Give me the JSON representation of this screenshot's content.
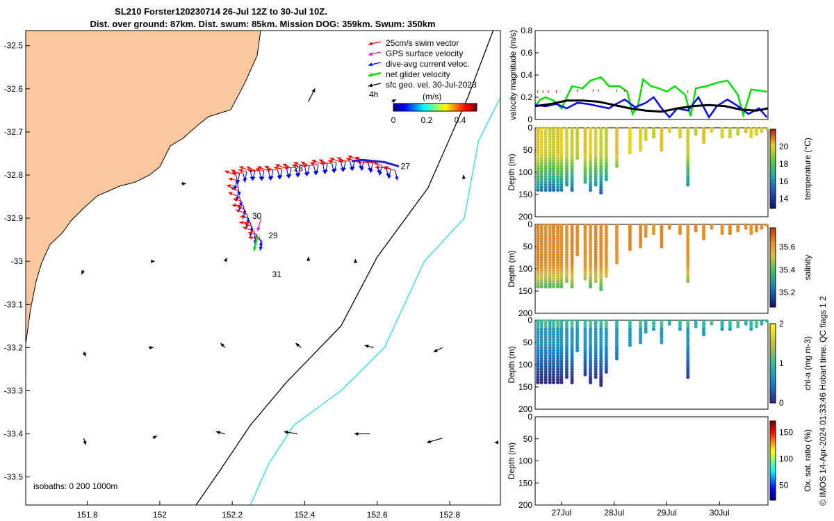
{
  "title": {
    "line1": "SL210 Forster120230714 26-Jul 12Z to 30-Jul 10Z.",
    "line2": "Dist. over ground: 87km. Dist. swum: 85km. Mission DOG: 359km. Swum: 350km"
  },
  "footer_credit": "© IMOS 14-Apr-2024 01:33:46 Hobart time. QC flags 1  2",
  "colors": {
    "land": "#f9c89e",
    "isobath_200": "#000000",
    "isobath_1000": "#3ee0e0",
    "swim_vector": "#ff0000",
    "gps_velocity": "#ff00ff",
    "dive_current": "#0000ff",
    "net_velocity": "#00e000",
    "geo_velocity": "#000000"
  },
  "chart_data": [
    {
      "type": "scatter",
      "name": "map",
      "x_ticks": [
        "151.8",
        "152",
        "152.2",
        "152.4",
        "152.6",
        "152.8"
      ],
      "x_tick_values": [
        151.8,
        152.0,
        152.2,
        152.4,
        152.6,
        152.8
      ],
      "y_ticks": [
        "-32.5",
        "-32.6",
        "-32.7",
        "-32.8",
        "-32.9",
        "-33",
        "-33.1",
        "-33.2",
        "-33.3",
        "-33.4",
        "-33.5"
      ],
      "y_tick_values": [
        -32.5,
        -32.6,
        -32.7,
        -32.8,
        -32.9,
        -33.0,
        -33.1,
        -33.2,
        -33.3,
        -33.4,
        -33.5
      ],
      "xlim": [
        151.63,
        152.94
      ],
      "ylim": [
        -33.565,
        -32.465
      ],
      "legend": [
        {
          "label": "25cm/s swim vector",
          "color": "#ff0000"
        },
        {
          "label": "GPS surface velocity",
          "color": "#ff00ff"
        },
        {
          "label": "dive-avg current veloc.",
          "color": "#0000ff"
        },
        {
          "label": "net glider velocity",
          "color": "#00e000"
        },
        {
          "label": "sfc geo. vel. 30-Jul-2023",
          "color": "#000000"
        }
      ],
      "scale_label": "4h",
      "colorbar": {
        "label": "(m/s)",
        "ticks": [
          "0",
          "0.2",
          "0.4"
        ],
        "tick_values": [
          0,
          0.2,
          0.4
        ],
        "range": [
          0,
          0.5
        ]
      },
      "day_labels": [
        {
          "text": "27",
          "lon": 152.665,
          "lat": -32.78
        },
        {
          "text": "28",
          "lon": 152.37,
          "lat": -32.785
        },
        {
          "text": "30",
          "lon": 152.255,
          "lat": -32.895
        },
        {
          "text": "29",
          "lon": 152.3,
          "lat": -32.94
        },
        {
          "text": "31",
          "lon": 152.31,
          "lat": -33.03
        }
      ],
      "isobath_note": "isobaths: 0   200  1000m",
      "track": [
        [
          152.65,
          -32.79
        ],
        [
          152.6,
          -32.775
        ],
        [
          152.55,
          -32.765
        ],
        [
          152.5,
          -32.77
        ],
        [
          152.45,
          -32.775
        ],
        [
          152.4,
          -32.78
        ],
        [
          152.35,
          -32.785
        ],
        [
          152.3,
          -32.79
        ],
        [
          152.25,
          -32.79
        ],
        [
          152.21,
          -32.8
        ],
        [
          152.22,
          -32.85
        ],
        [
          152.24,
          -32.89
        ],
        [
          152.26,
          -32.93
        ],
        [
          152.29,
          -32.96
        ]
      ],
      "isobath_200m": [
        [
          152.92,
          -32.465
        ],
        [
          152.85,
          -32.62
        ],
        [
          152.74,
          -32.83
        ],
        [
          152.6,
          -32.99
        ],
        [
          152.5,
          -33.15
        ],
        [
          152.35,
          -33.28
        ],
        [
          152.25,
          -33.38
        ],
        [
          152.17,
          -33.48
        ],
        [
          152.1,
          -33.565
        ]
      ],
      "isobath_1000m": [
        [
          152.94,
          -32.62
        ],
        [
          152.88,
          -32.72
        ],
        [
          152.84,
          -32.9
        ],
        [
          152.73,
          -33.0
        ],
        [
          152.62,
          -33.2
        ],
        [
          152.5,
          -33.3
        ],
        [
          152.37,
          -33.38
        ],
        [
          152.3,
          -33.47
        ],
        [
          152.25,
          -33.565
        ]
      ],
      "geo_vectors": [
        {
          "lon": 152.06,
          "lat": -32.82,
          "u": 0.02,
          "v": 0.0
        },
        {
          "lon": 152.84,
          "lat": -32.81,
          "u": -0.005,
          "v": 0.02
        },
        {
          "lon": 152.41,
          "lat": -32.63,
          "u": 0.03,
          "v": 0.06
        },
        {
          "lon": 152.64,
          "lat": -32.63,
          "u": 0.02,
          "v": 0.01
        },
        {
          "lon": 151.79,
          "lat": -33.02,
          "u": -0.01,
          "v": -0.02
        },
        {
          "lon": 151.98,
          "lat": -33.0,
          "u": 0.01,
          "v": 0.0
        },
        {
          "lon": 152.18,
          "lat": -33.0,
          "u": 0.01,
          "v": 0.015
        },
        {
          "lon": 152.41,
          "lat": -33.0,
          "u": 0.0,
          "v": 0.02
        },
        {
          "lon": 152.54,
          "lat": -33.0,
          "u": 0.0,
          "v": 0.01
        },
        {
          "lon": 151.79,
          "lat": -33.21,
          "u": 0.01,
          "v": -0.02
        },
        {
          "lon": 151.97,
          "lat": -33.2,
          "u": 0.02,
          "v": 0.0
        },
        {
          "lon": 152.18,
          "lat": -33.2,
          "u": -0.02,
          "v": 0.02
        },
        {
          "lon": 152.39,
          "lat": -33.2,
          "u": -0.025,
          "v": 0.02
        },
        {
          "lon": 152.59,
          "lat": -33.2,
          "u": -0.04,
          "v": 0.01
        },
        {
          "lon": 152.78,
          "lat": -33.2,
          "u": -0.04,
          "v": -0.02
        },
        {
          "lon": 151.79,
          "lat": -33.41,
          "u": 0.01,
          "v": -0.03
        },
        {
          "lon": 151.98,
          "lat": -33.41,
          "u": 0.02,
          "v": 0.01
        },
        {
          "lon": 152.18,
          "lat": -33.4,
          "u": -0.04,
          "v": 0.01
        },
        {
          "lon": 152.38,
          "lat": -33.4,
          "u": -0.06,
          "v": 0.01
        },
        {
          "lon": 152.58,
          "lat": -33.4,
          "u": -0.07,
          "v": 0.0
        },
        {
          "lon": 152.78,
          "lat": -33.41,
          "u": -0.07,
          "v": -0.02
        },
        {
          "lon": 152.93,
          "lat": -33.42,
          "u": -0.01,
          "v": 0.0
        }
      ]
    },
    {
      "type": "line",
      "name": "velocity",
      "ylabel": "velocity magnitude (m/s)",
      "y_ticks": [
        "0",
        "0.2",
        "0.4",
        "0.6",
        "0.8"
      ],
      "y_tick_values": [
        0,
        0.2,
        0.4,
        0.6,
        0.8
      ],
      "ylim": [
        0,
        0.8
      ],
      "xlim": [
        26.5,
        30.92
      ],
      "series": [
        {
          "color": "#00e000",
          "x": [
            26.5,
            26.6,
            26.7,
            26.85,
            27.0,
            27.2,
            27.4,
            27.55,
            27.75,
            27.9,
            28.1,
            28.25,
            28.35,
            28.45,
            28.55,
            28.7,
            28.85,
            29.0,
            29.15,
            29.35,
            29.45,
            29.55,
            29.75,
            29.95,
            30.15,
            30.35,
            30.45,
            30.6,
            30.75,
            30.9
          ],
          "y": [
            0.12,
            0.18,
            0.2,
            0.17,
            0.1,
            0.3,
            0.28,
            0.35,
            0.38,
            0.3,
            0.3,
            0.25,
            0.05,
            0.12,
            0.36,
            0.3,
            0.28,
            0.25,
            0.3,
            0.22,
            0.03,
            0.28,
            0.3,
            0.33,
            0.35,
            0.22,
            0.04,
            0.27,
            0.26,
            0.25
          ]
        },
        {
          "color": "#0000ff",
          "x": [
            26.5,
            26.7,
            26.9,
            27.1,
            27.3,
            27.5,
            27.7,
            27.9,
            28.0,
            28.2,
            28.4,
            28.6,
            28.75,
            28.9,
            29.05,
            29.2,
            29.4,
            29.6,
            29.8,
            29.95,
            30.15,
            30.35,
            30.55,
            30.75,
            30.9
          ],
          "y": [
            0.13,
            0.12,
            0.14,
            0.1,
            0.15,
            0.14,
            0.12,
            0.1,
            0.13,
            0.18,
            0.11,
            0.15,
            0.2,
            0.1,
            0.02,
            0.1,
            0.08,
            0.2,
            0.02,
            0.12,
            0.18,
            0.12,
            0.05,
            0.1,
            0.02
          ]
        },
        {
          "color": "#000000",
          "x": [
            26.5,
            26.8,
            27.1,
            27.4,
            27.7,
            28.0,
            28.3,
            28.6,
            28.9,
            29.2,
            29.5,
            29.8,
            30.1,
            30.4,
            30.7,
            30.92
          ],
          "y": [
            0.12,
            0.14,
            0.17,
            0.17,
            0.16,
            0.13,
            0.1,
            0.08,
            0.07,
            0.1,
            0.12,
            0.13,
            0.12,
            0.09,
            0.08,
            0.1
          ]
        },
        {
          "color": "#ff0000",
          "x": [
            26.55,
            26.65,
            26.75,
            26.9,
            27.3,
            27.6,
            27.7,
            28.05,
            28.2,
            29.4
          ],
          "y": [
            0.25,
            0.25,
            0.25,
            0.25,
            0.26,
            0.26,
            0.26,
            0.26,
            0.26,
            0.25
          ]
        }
      ]
    },
    {
      "type": "scatter",
      "name": "temperature",
      "ylabel": "Depth (m)",
      "clabel": "temperature (°C)",
      "y_ticks": [
        "0",
        "50",
        "100",
        "150",
        "200"
      ],
      "y_tick_values": [
        0,
        50,
        100,
        150,
        200
      ],
      "ylim": [
        200,
        0
      ],
      "c_ticks": [
        "14",
        "16",
        "18",
        "20"
      ],
      "c_tick_values": [
        14,
        16,
        18,
        20
      ],
      "clim": [
        12.9,
        22.0
      ],
      "profile_days": [
        26.55,
        26.62,
        26.7,
        26.78,
        26.85,
        26.93,
        27.0,
        27.1,
        27.2,
        27.3,
        27.45,
        27.55,
        27.65,
        27.75,
        27.85,
        28.05,
        28.3,
        28.5,
        28.6,
        28.75,
        28.9,
        29.05,
        29.25,
        29.4,
        29.55,
        29.7,
        29.85,
        30.05,
        30.2,
        30.35,
        30.5,
        30.6,
        30.7,
        30.8,
        30.9
      ],
      "profile_max_depth": [
        145,
        145,
        145,
        145,
        145,
        145,
        145,
        130,
        140,
        70,
        125,
        140,
        130,
        150,
        120,
        90,
        60,
        55,
        30,
        20,
        50,
        10,
        20,
        130,
        15,
        35,
        10,
        25,
        20,
        15,
        10,
        20,
        15,
        10,
        5
      ]
    },
    {
      "type": "scatter",
      "name": "salinity",
      "ylabel": "Depth (m)",
      "clabel": "salinity",
      "y_ticks": [
        "0",
        "50",
        "100",
        "150",
        "200"
      ],
      "y_tick_values": [
        0,
        50,
        100,
        150,
        200
      ],
      "ylim": [
        200,
        0
      ],
      "c_ticks": [
        "35.2",
        "35.4",
        "35.6"
      ],
      "c_tick_values": [
        35.2,
        35.4,
        35.6
      ],
      "clim": [
        35.07,
        35.77
      ],
      "profile_days": [
        26.55,
        26.62,
        26.7,
        26.78,
        26.85,
        26.93,
        27.0,
        27.1,
        27.2,
        27.3,
        27.45,
        27.55,
        27.65,
        27.75,
        27.85,
        28.05,
        28.3,
        28.5,
        28.6,
        28.75,
        28.9,
        29.05,
        29.25,
        29.4,
        29.55,
        29.7,
        29.85,
        30.05,
        30.2,
        30.35,
        30.5,
        30.6,
        30.7,
        30.8,
        30.9
      ],
      "profile_max_depth": [
        145,
        145,
        145,
        145,
        145,
        145,
        145,
        130,
        140,
        70,
        125,
        140,
        130,
        150,
        120,
        90,
        60,
        55,
        30,
        20,
        50,
        10,
        20,
        130,
        15,
        35,
        10,
        25,
        20,
        15,
        10,
        20,
        15,
        10,
        5
      ]
    },
    {
      "type": "scatter",
      "name": "chlorophyll",
      "ylabel": "Depth (m)",
      "clabel": "chl-a (mg m-3)",
      "y_ticks": [
        "0",
        "50",
        "100",
        "150",
        "200"
      ],
      "y_tick_values": [
        0,
        50,
        100,
        150,
        200
      ],
      "ylim": [
        200,
        0
      ],
      "c_ticks": [
        "0",
        "1",
        "2"
      ],
      "c_tick_values": [
        0,
        1,
        2
      ],
      "clim": [
        0,
        2
      ],
      "profile_days": [
        26.55,
        26.62,
        26.7,
        26.78,
        26.85,
        26.93,
        27.0,
        27.1,
        27.2,
        27.3,
        27.45,
        27.55,
        27.65,
        27.75,
        27.85,
        28.05,
        28.3,
        28.5,
        28.6,
        28.75,
        28.9,
        29.05,
        29.25,
        29.4,
        29.55,
        29.7,
        29.85,
        30.05,
        30.2,
        30.35,
        30.5,
        30.6,
        30.7,
        30.8,
        30.9
      ],
      "profile_max_depth": [
        145,
        145,
        145,
        145,
        145,
        145,
        145,
        130,
        140,
        70,
        125,
        140,
        130,
        150,
        120,
        90,
        60,
        55,
        30,
        20,
        50,
        10,
        20,
        130,
        15,
        35,
        10,
        25,
        20,
        15,
        10,
        20,
        15,
        10,
        5
      ]
    },
    {
      "type": "scatter",
      "name": "oxygen",
      "ylabel": "Depth (m)",
      "clabel": "Ox. sat. ratio (%)",
      "y_ticks": [
        "0",
        "50",
        "100",
        "150",
        "200"
      ],
      "y_tick_values": [
        0,
        50,
        100,
        150,
        200
      ],
      "ylim": [
        200,
        0
      ],
      "c_ticks": [
        "50",
        "100",
        "150"
      ],
      "c_tick_values": [
        50,
        100,
        150
      ],
      "clim": [
        22,
        172
      ],
      "x_ticks": [
        "27Jul",
        "28Jul",
        "29Jul",
        "30Jul"
      ],
      "x_tick_values": [
        27,
        28,
        29,
        30
      ]
    }
  ]
}
